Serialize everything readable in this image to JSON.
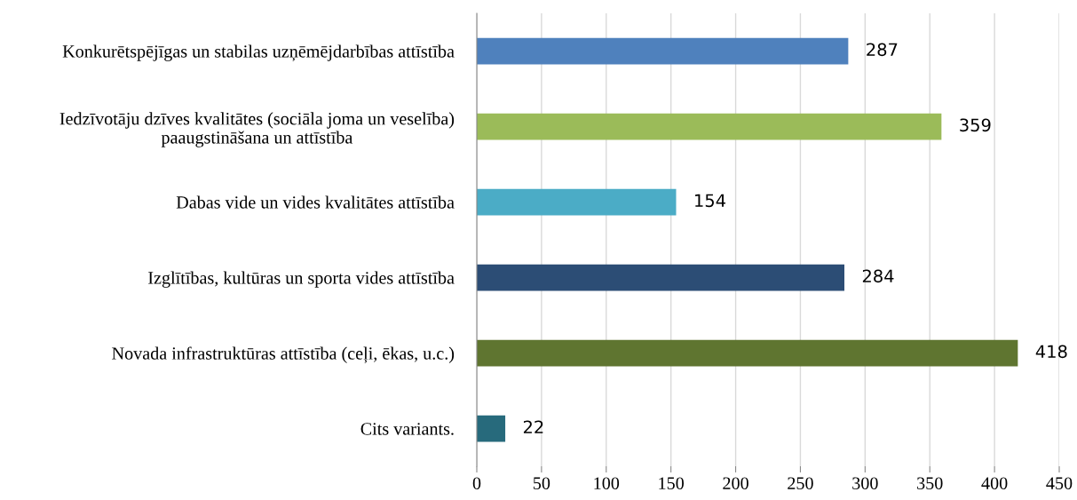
{
  "chart_data": {
    "type": "bar",
    "orientation": "horizontal",
    "categories": [
      "Konkurētspējīgas un stabilas uzņēmējdarbības attīstība",
      "Iedzīvotāju dzīves kvalitātes (sociāla joma un veselība)\npaaugstināšana un attīstība",
      "Dabas vide un vides kvalitātes attīstība",
      "Izglītības, kultūras un sporta vides attīstība",
      "Novada infrastruktūras attīstība (ceļi, ēkas, u.c.)",
      "Cits variants."
    ],
    "values": [
      287,
      359,
      154,
      284,
      418,
      22
    ],
    "colors": [
      "#4f81bd",
      "#9bbb59",
      "#4bacc6",
      "#2c4d75",
      "#5f7530",
      "#276a7c"
    ],
    "xlim": [
      0,
      450
    ],
    "xticks": [
      0,
      50,
      100,
      150,
      200,
      250,
      300,
      350,
      400,
      450
    ],
    "grid": "x",
    "data_labels": true
  }
}
